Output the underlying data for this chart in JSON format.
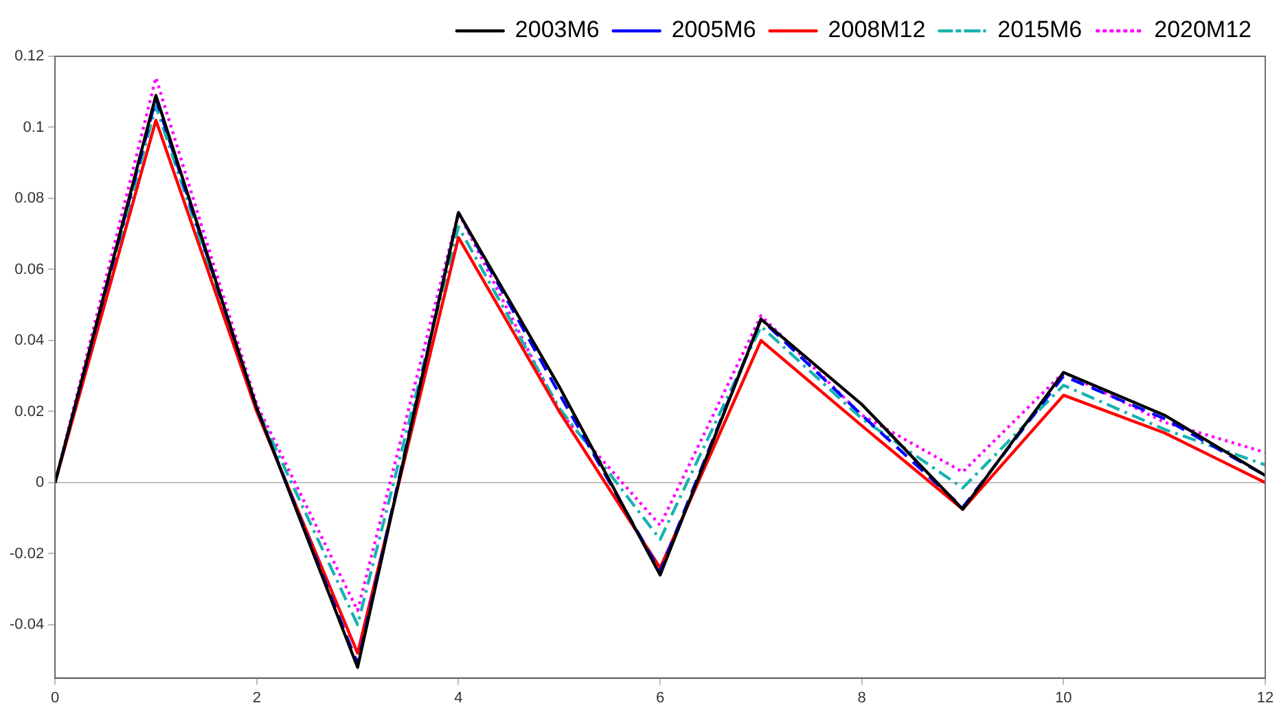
{
  "chart_data": {
    "type": "line",
    "x": [
      0,
      1,
      2,
      3,
      4,
      5,
      6,
      7,
      8,
      9,
      10,
      11,
      12
    ],
    "series": [
      {
        "name": "2003M6",
        "color": "#000000",
        "line_style": "solid",
        "values": [
          0,
          0.109,
          0.021,
          -0.052,
          0.076,
          0.027,
          -0.026,
          0.046,
          0.022,
          -0.0075,
          0.031,
          0.019,
          0.002
        ]
      },
      {
        "name": "2005M6",
        "color": "#0000ff",
        "line_style": "dashed",
        "values": [
          0,
          0.108,
          0.021,
          -0.051,
          0.076,
          0.025,
          -0.025,
          0.046,
          0.019,
          -0.007,
          0.03,
          0.018,
          0.002
        ]
      },
      {
        "name": "2008M12",
        "color": "#ff0000",
        "line_style": "solid",
        "values": [
          0,
          0.102,
          0.02,
          -0.048,
          0.069,
          0.02,
          -0.024,
          0.04,
          0.016,
          -0.0075,
          0.0246,
          0.014,
          0
        ]
      },
      {
        "name": "2015M6",
        "color": "#17b3b0",
        "line_style": "dashdot",
        "values": [
          0,
          0.106,
          0.021,
          -0.04,
          0.072,
          0.021,
          -0.016,
          0.044,
          0.018,
          -0.0015,
          0.0274,
          0.015,
          0.005
        ]
      },
      {
        "name": "2020M12",
        "color": "#ff00ff",
        "line_style": "dotted",
        "values": [
          0,
          0.114,
          0.022,
          -0.036,
          0.076,
          0.02,
          -0.012,
          0.047,
          0.019,
          0.003,
          0.031,
          0.017,
          0.0085
        ]
      }
    ],
    "xlim": [
      0,
      12
    ],
    "xticks": [
      0,
      2,
      4,
      6,
      8,
      10,
      12
    ],
    "ylim": [
      -0.055,
      0.12
    ],
    "yticks": [
      -0.04,
      -0.02,
      0,
      0.02,
      0.04,
      0.06,
      0.08,
      0.1,
      0.12
    ],
    "ref_lines": [
      {
        "axis": "y",
        "value": 0,
        "color": "#c0c0c0"
      }
    ],
    "grid": false,
    "legend": "top right",
    "marker": "none"
  }
}
